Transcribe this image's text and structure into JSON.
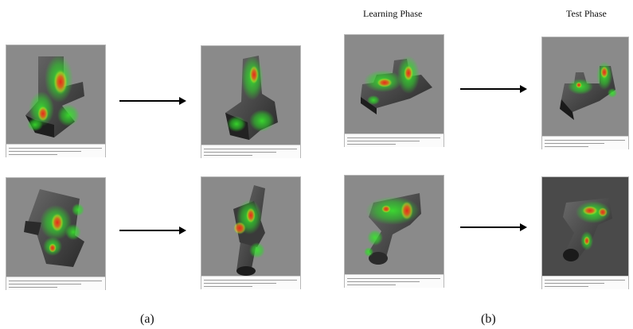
{
  "headings": {
    "learning": "Learning Phase",
    "test": "Test Phase"
  },
  "sublabels": {
    "a": "(a)",
    "b": "(b)"
  },
  "colors": {
    "canvas_gray": "#8a8a8a",
    "canvas_dark": "#4a4a4a",
    "heat_red": "#e8261c",
    "heat_yellow": "#e6e01e",
    "heat_green": "#2fd62a",
    "object_dark": "#2c2c2c"
  }
}
